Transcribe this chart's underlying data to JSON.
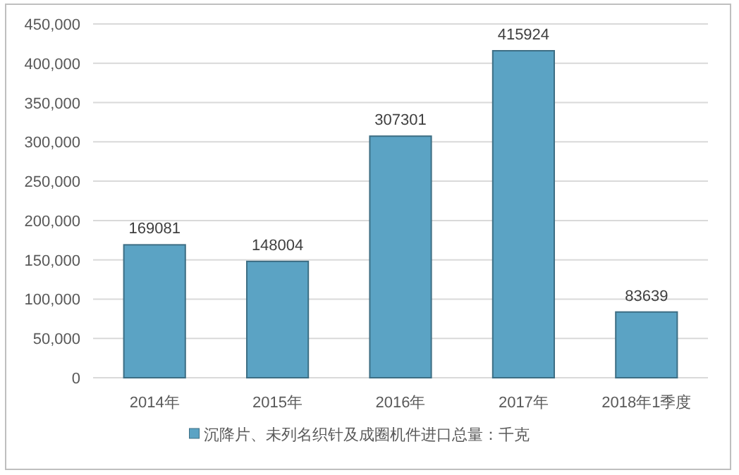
{
  "chart_data": {
    "type": "bar",
    "categories": [
      "2014年",
      "2015年",
      "2016年",
      "2017年",
      "2018年1季度"
    ],
    "series": [
      {
        "name": "沉降片、未列名织针及成圈机件进口总量：千克",
        "color": "#5ba3c4",
        "values": [
          169081,
          148004,
          307301,
          415924,
          83639
        ]
      }
    ],
    "ylim": [
      0,
      450000
    ],
    "yticks": [
      {
        "value": 0,
        "label": "0"
      },
      {
        "value": 50000,
        "label": "50,000"
      },
      {
        "value": 100000,
        "label": "100,000"
      },
      {
        "value": 150000,
        "label": "150,000"
      },
      {
        "value": 200000,
        "label": "200,000"
      },
      {
        "value": 250000,
        "label": "250,000"
      },
      {
        "value": 300000,
        "label": "300,000"
      },
      {
        "value": 350000,
        "label": "350,000"
      },
      {
        "value": 400000,
        "label": "400,000"
      },
      {
        "value": 450000,
        "label": "450,000"
      }
    ],
    "grid": "y",
    "legend": "bottom",
    "data_labels": true
  }
}
